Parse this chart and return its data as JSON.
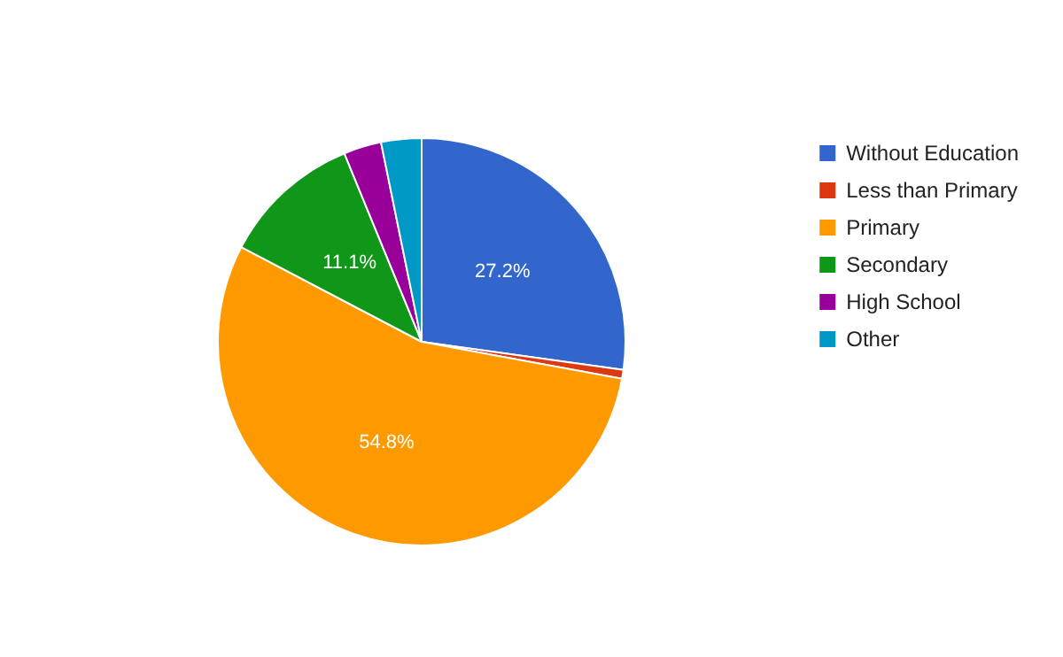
{
  "chart_data": {
    "type": "pie",
    "categories": [
      "Without Education",
      "Less than Primary",
      "Primary",
      "Secondary",
      "High School",
      "Other"
    ],
    "values": [
      27.2,
      0.7,
      54.8,
      11.1,
      3.0,
      3.2
    ],
    "colors": [
      "#3366cc",
      "#dc3912",
      "#ff9900",
      "#109618",
      "#990099",
      "#0099c6"
    ],
    "value_labels": [
      "27.2%",
      null,
      "54.8%",
      "11.1%",
      null,
      null
    ],
    "legend": "top right"
  }
}
